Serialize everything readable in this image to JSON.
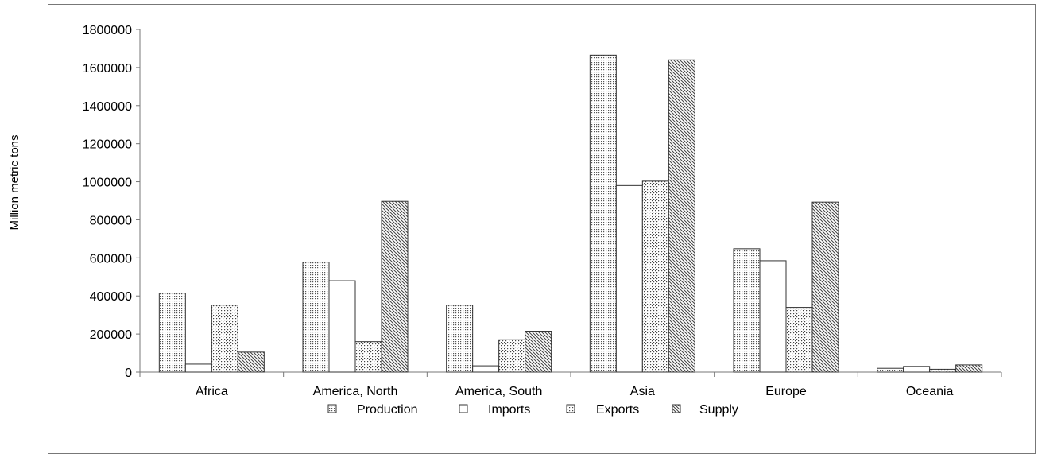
{
  "chart_data": {
    "type": "bar",
    "title": "",
    "ylabel": "Million metric tons",
    "xlabel": "",
    "categories": [
      "Africa",
      "America, North",
      "America, South",
      "Asia",
      "Europe",
      "Oceania"
    ],
    "series": [
      {
        "name": "Production",
        "pattern": "dots",
        "values": [
          415000,
          578000,
          352000,
          1665000,
          648000,
          20000
        ]
      },
      {
        "name": "Imports",
        "pattern": "none",
        "values": [
          42000,
          480000,
          33000,
          980000,
          585000,
          30000
        ]
      },
      {
        "name": "Exports",
        "pattern": "sparse-dots",
        "values": [
          352000,
          160000,
          170000,
          1003000,
          340000,
          15000
        ]
      },
      {
        "name": "Supply",
        "pattern": "diagonal",
        "values": [
          105000,
          897000,
          215000,
          1640000,
          893000,
          38000
        ]
      }
    ],
    "yticks": [
      "0",
      "200000",
      "400000",
      "600000",
      "800000",
      "1000000",
      "1200000",
      "1400000",
      "1600000",
      "1800000"
    ],
    "ylim": [
      0,
      1800000
    ],
    "legend_position": "bottom",
    "grid": false
  }
}
